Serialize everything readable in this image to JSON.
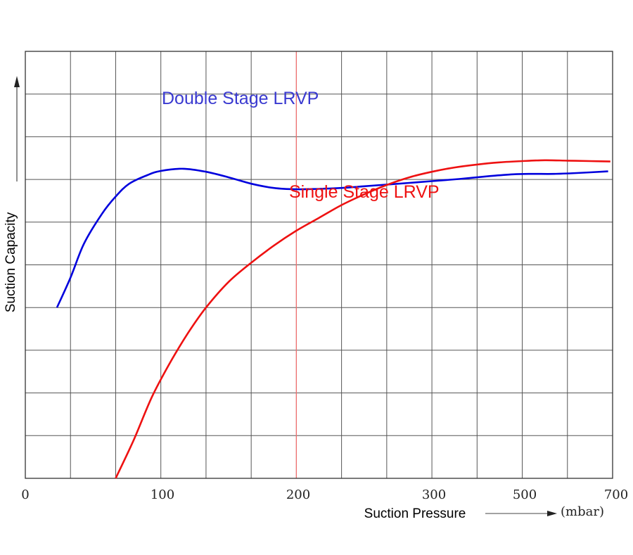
{
  "chart_data": {
    "type": "line",
    "xlabel": "Suction Pressure",
    "x_unit": "(mbar)",
    "ylabel": "Suction Capacity",
    "x_tick_labels": [
      "0",
      "100",
      "200",
      "300",
      "500",
      "700"
    ],
    "grid": true,
    "colors": {
      "grid": "#555555",
      "highlight_line": "#f07070",
      "double_stage": "#0000dd",
      "single_stage": "#ee1111"
    },
    "series": [
      {
        "name": "Double Stage LRVP",
        "color": "#0000dd",
        "points": [
          [
            0.7,
            6.0
          ],
          [
            1.0,
            5.3
          ],
          [
            1.3,
            4.5
          ],
          [
            1.7,
            3.8
          ],
          [
            2.0,
            3.4
          ],
          [
            2.3,
            3.1
          ],
          [
            2.7,
            2.9
          ],
          [
            3.0,
            2.8
          ],
          [
            3.5,
            2.75
          ],
          [
            4.0,
            2.82
          ],
          [
            4.5,
            2.95
          ],
          [
            5.0,
            3.1
          ],
          [
            5.5,
            3.2
          ],
          [
            6.0,
            3.23
          ],
          [
            6.5,
            3.22
          ],
          [
            7.0,
            3.2
          ],
          [
            7.5,
            3.16
          ],
          [
            8.0,
            3.12
          ],
          [
            8.5,
            3.08
          ],
          [
            9.0,
            3.04
          ],
          [
            9.6,
            2.99
          ],
          [
            10.3,
            2.92
          ],
          [
            10.8,
            2.88
          ],
          [
            11.2,
            2.87
          ],
          [
            11.7,
            2.87
          ],
          [
            12.2,
            2.85
          ],
          [
            12.9,
            2.81
          ]
        ]
      },
      {
        "name": "Single Stage LRVP",
        "color": "#ee1111",
        "points": [
          [
            2.0,
            10.0
          ],
          [
            2.4,
            9.1
          ],
          [
            2.8,
            8.1
          ],
          [
            3.2,
            7.3
          ],
          [
            3.6,
            6.6
          ],
          [
            4.0,
            6.0
          ],
          [
            4.5,
            5.4
          ],
          [
            5.0,
            4.95
          ],
          [
            5.5,
            4.55
          ],
          [
            6.0,
            4.2
          ],
          [
            6.5,
            3.9
          ],
          [
            7.0,
            3.6
          ],
          [
            7.5,
            3.35
          ],
          [
            8.0,
            3.13
          ],
          [
            8.5,
            2.95
          ],
          [
            9.0,
            2.82
          ],
          [
            9.5,
            2.72
          ],
          [
            10.0,
            2.65
          ],
          [
            10.5,
            2.6
          ],
          [
            11.0,
            2.57
          ],
          [
            11.5,
            2.55
          ],
          [
            12.0,
            2.56
          ],
          [
            12.5,
            2.57
          ],
          [
            12.95,
            2.58
          ]
        ]
      }
    ]
  }
}
